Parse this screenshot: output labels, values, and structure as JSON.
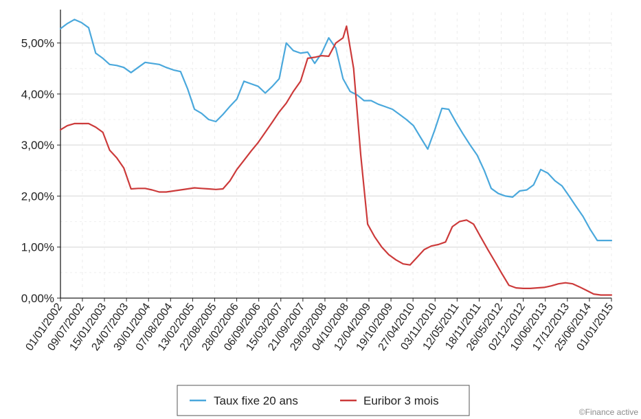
{
  "chart_data": {
    "type": "line",
    "title": "",
    "xlabel": "",
    "ylabel": "",
    "ylim": [
      0,
      5.6
    ],
    "yticks": [
      0,
      1,
      2,
      3,
      4,
      5
    ],
    "ytick_labels": [
      "0,00%",
      "1,00%",
      "2,00%",
      "3,00%",
      "4,00%",
      "5,00%"
    ],
    "xtick_labels": [
      "01/01/2002",
      "09/07/2002",
      "15/01/2003",
      "24/07/2003",
      "30/01/2004",
      "07/08/2004",
      "13/02/2005",
      "22/08/2005",
      "28/02/2006",
      "06/09/2006",
      "15/03/2007",
      "21/09/2007",
      "29/03/2008",
      "04/10/2008",
      "12/04/2009",
      "19/10/2009",
      "27/04/2010",
      "03/11/2010",
      "12/05/2011",
      "18/11/2011",
      "26/05/2012",
      "02/12/2012",
      "10/06/2013",
      "17/12/2013",
      "25/06/2014",
      "01/01/2015"
    ],
    "grid": true,
    "legend_position": "bottom-center",
    "series": [
      {
        "name": "Taux fixe 20 ans",
        "color": "#4aa8dc",
        "x": [
          "01/01/2002",
          "01/03/2002",
          "01/05/2002",
          "01/07/2002",
          "01/09/2002",
          "01/11/2002",
          "01/01/2003",
          "01/03/2003",
          "01/05/2003",
          "01/07/2003",
          "01/09/2003",
          "01/11/2003",
          "01/01/2004",
          "01/03/2004",
          "01/05/2004",
          "01/07/2004",
          "01/09/2004",
          "01/11/2004",
          "01/01/2005",
          "01/03/2005",
          "01/05/2005",
          "01/07/2005",
          "01/09/2005",
          "01/11/2005",
          "01/01/2006",
          "01/03/2006",
          "01/05/2006",
          "01/07/2006",
          "01/09/2006",
          "01/11/2006",
          "01/01/2007",
          "01/03/2007",
          "01/05/2007",
          "01/07/2007",
          "01/09/2007",
          "01/11/2007",
          "01/01/2008",
          "01/03/2008",
          "01/05/2008",
          "01/07/2008",
          "01/09/2008",
          "01/11/2008",
          "01/01/2009",
          "01/03/2009",
          "01/05/2009",
          "01/07/2009",
          "01/09/2009",
          "01/11/2009",
          "01/01/2010",
          "01/03/2010",
          "01/05/2010",
          "01/07/2010",
          "01/09/2010",
          "01/11/2010",
          "01/01/2011",
          "01/03/2011",
          "01/05/2011",
          "01/07/2011",
          "01/09/2011",
          "01/11/2011",
          "01/01/2012",
          "01/03/2012",
          "01/05/2012",
          "01/07/2012",
          "01/09/2012",
          "01/11/2012",
          "01/01/2013",
          "01/03/2013",
          "01/05/2013",
          "01/07/2013",
          "01/09/2013",
          "01/11/2013",
          "01/01/2014",
          "01/03/2014",
          "01/05/2014",
          "01/07/2014",
          "01/09/2014",
          "01/11/2014",
          "01/01/2015"
        ],
        "values": [
          5.28,
          5.38,
          5.46,
          5.4,
          5.3,
          4.8,
          4.7,
          4.58,
          4.56,
          4.52,
          4.42,
          4.52,
          4.62,
          4.6,
          4.58,
          4.52,
          4.47,
          4.44,
          4.1,
          3.7,
          3.62,
          3.5,
          3.46,
          3.6,
          3.76,
          3.9,
          4.25,
          4.2,
          4.15,
          4.02,
          4.15,
          4.3,
          5.0,
          4.85,
          4.8,
          4.82,
          4.6,
          4.8,
          5.1,
          4.9,
          4.3,
          4.05,
          3.98,
          3.87,
          3.87,
          3.8,
          3.75,
          3.7,
          3.6,
          3.5,
          3.38,
          3.15,
          2.92,
          3.3,
          3.72,
          3.7,
          3.45,
          3.22,
          3.0,
          2.8,
          2.5,
          2.15,
          2.05,
          2.0,
          1.98,
          2.1,
          2.12,
          2.22,
          2.52,
          2.45,
          2.3,
          2.2,
          2.0,
          1.8,
          1.6,
          1.35,
          1.13,
          1.13,
          1.13
        ]
      },
      {
        "name": "Euribor 3 mois",
        "color": "#cc3a3a",
        "x": [
          "01/01/2002",
          "01/03/2002",
          "01/05/2002",
          "01/07/2002",
          "01/09/2002",
          "01/11/2002",
          "01/01/2003",
          "01/03/2003",
          "01/05/2003",
          "01/07/2003",
          "01/09/2003",
          "01/11/2003",
          "01/01/2004",
          "01/03/2004",
          "01/05/2004",
          "01/07/2004",
          "01/09/2004",
          "01/11/2004",
          "01/01/2005",
          "01/03/2005",
          "01/05/2005",
          "01/07/2005",
          "01/09/2005",
          "01/11/2005",
          "01/01/2006",
          "01/03/2006",
          "01/05/2006",
          "01/07/2006",
          "01/09/2006",
          "01/11/2006",
          "01/01/2007",
          "01/03/2007",
          "01/05/2007",
          "01/07/2007",
          "01/09/2007",
          "01/11/2007",
          "01/01/2008",
          "01/03/2008",
          "01/05/2008",
          "01/07/2008",
          "01/09/2008",
          "01/10/2008",
          "01/12/2008",
          "01/02/2009",
          "01/04/2009",
          "01/06/2009",
          "01/08/2009",
          "01/10/2009",
          "01/12/2009",
          "01/02/2010",
          "01/04/2010",
          "01/06/2010",
          "01/08/2010",
          "01/10/2010",
          "01/12/2010",
          "01/02/2011",
          "01/04/2011",
          "01/06/2011",
          "01/08/2011",
          "01/10/2011",
          "01/12/2011",
          "01/02/2012",
          "01/04/2012",
          "01/06/2012",
          "01/08/2012",
          "01/10/2012",
          "01/12/2012",
          "01/02/2013",
          "01/04/2013",
          "01/06/2013",
          "01/08/2013",
          "01/10/2013",
          "01/12/2013",
          "01/02/2014",
          "01/04/2014",
          "01/06/2014",
          "01/08/2014",
          "01/10/2014",
          "01/12/2014",
          "01/01/2015"
        ],
        "values": [
          3.3,
          3.38,
          3.42,
          3.42,
          3.42,
          3.35,
          3.25,
          2.9,
          2.75,
          2.55,
          2.14,
          2.15,
          2.15,
          2.12,
          2.08,
          2.08,
          2.1,
          2.12,
          2.14,
          2.16,
          2.15,
          2.14,
          2.13,
          2.14,
          2.3,
          2.52,
          2.7,
          2.88,
          3.05,
          3.25,
          3.45,
          3.65,
          3.82,
          4.05,
          4.25,
          4.7,
          4.72,
          4.75,
          4.74,
          5.0,
          5.1,
          5.33,
          4.5,
          2.8,
          1.45,
          1.2,
          1.0,
          0.85,
          0.75,
          0.67,
          0.65,
          0.8,
          0.95,
          1.02,
          1.05,
          1.1,
          1.4,
          1.5,
          1.53,
          1.45,
          1.2,
          0.95,
          0.72,
          0.48,
          0.25,
          0.2,
          0.19,
          0.19,
          0.2,
          0.21,
          0.24,
          0.28,
          0.3,
          0.28,
          0.22,
          0.15,
          0.08,
          0.06,
          0.06,
          0.06
        ]
      }
    ]
  },
  "footer": {
    "credit": "©Finance active"
  }
}
